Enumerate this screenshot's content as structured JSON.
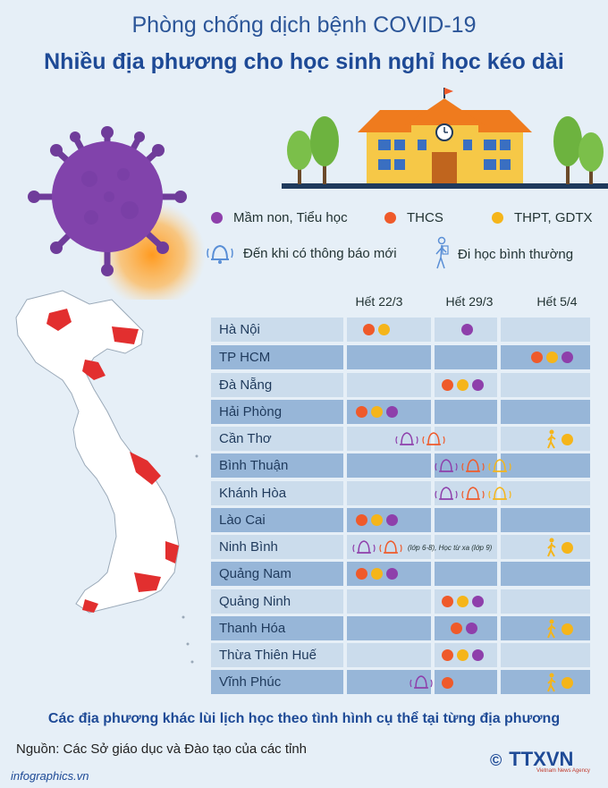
{
  "title": "Phòng chống dịch bệnh COVID-19",
  "subtitle": "Nhiều địa phương cho học sinh nghỉ học kéo dài",
  "colors": {
    "mam_non": "#8e3fab",
    "thcs": "#ef5a2a",
    "thpt": "#f5b51a",
    "row_light": "#cbdcec",
    "row_dark": "#97b6d8",
    "title": "#1e4a96"
  },
  "legend": {
    "mam_non": "Mầm non, Tiểu học",
    "thcs": "THCS",
    "thpt": "THPT, GDTX",
    "bell": "Đến khi có thông báo mới",
    "walk": "Đi học bình thường"
  },
  "columns": [
    "Hết 22/3",
    "Hết 29/3",
    "Hết 5/4"
  ],
  "rows": [
    {
      "name": "Hà Nội"
    },
    {
      "name": "TP HCM"
    },
    {
      "name": "Đà Nẵng"
    },
    {
      "name": "Hải Phòng"
    },
    {
      "name": "Cần Thơ"
    },
    {
      "name": "Bình Thuận"
    },
    {
      "name": "Khánh Hòa"
    },
    {
      "name": "Lào Cai"
    },
    {
      "name": "Ninh Bình",
      "note": "(lớp 6-8), Học từ xa (lớp 9)"
    },
    {
      "name": "Quảng Nam"
    },
    {
      "name": "Quảng Ninh"
    },
    {
      "name": "Thanh Hóa"
    },
    {
      "name": "Thừa Thiên Huế"
    },
    {
      "name": "Vĩnh Phúc"
    }
  ],
  "footer": {
    "note": "Các địa phương khác lùi lịch học theo tình hình cụ thể tại từng địa phương",
    "source": "Nguồn: Các Sở giáo dục và Đào tạo của các tỉnh",
    "site": "infographics.vn",
    "logo": "TTXVN",
    "logo_sub": "Vietnam News Agency",
    "copyright": "©"
  }
}
